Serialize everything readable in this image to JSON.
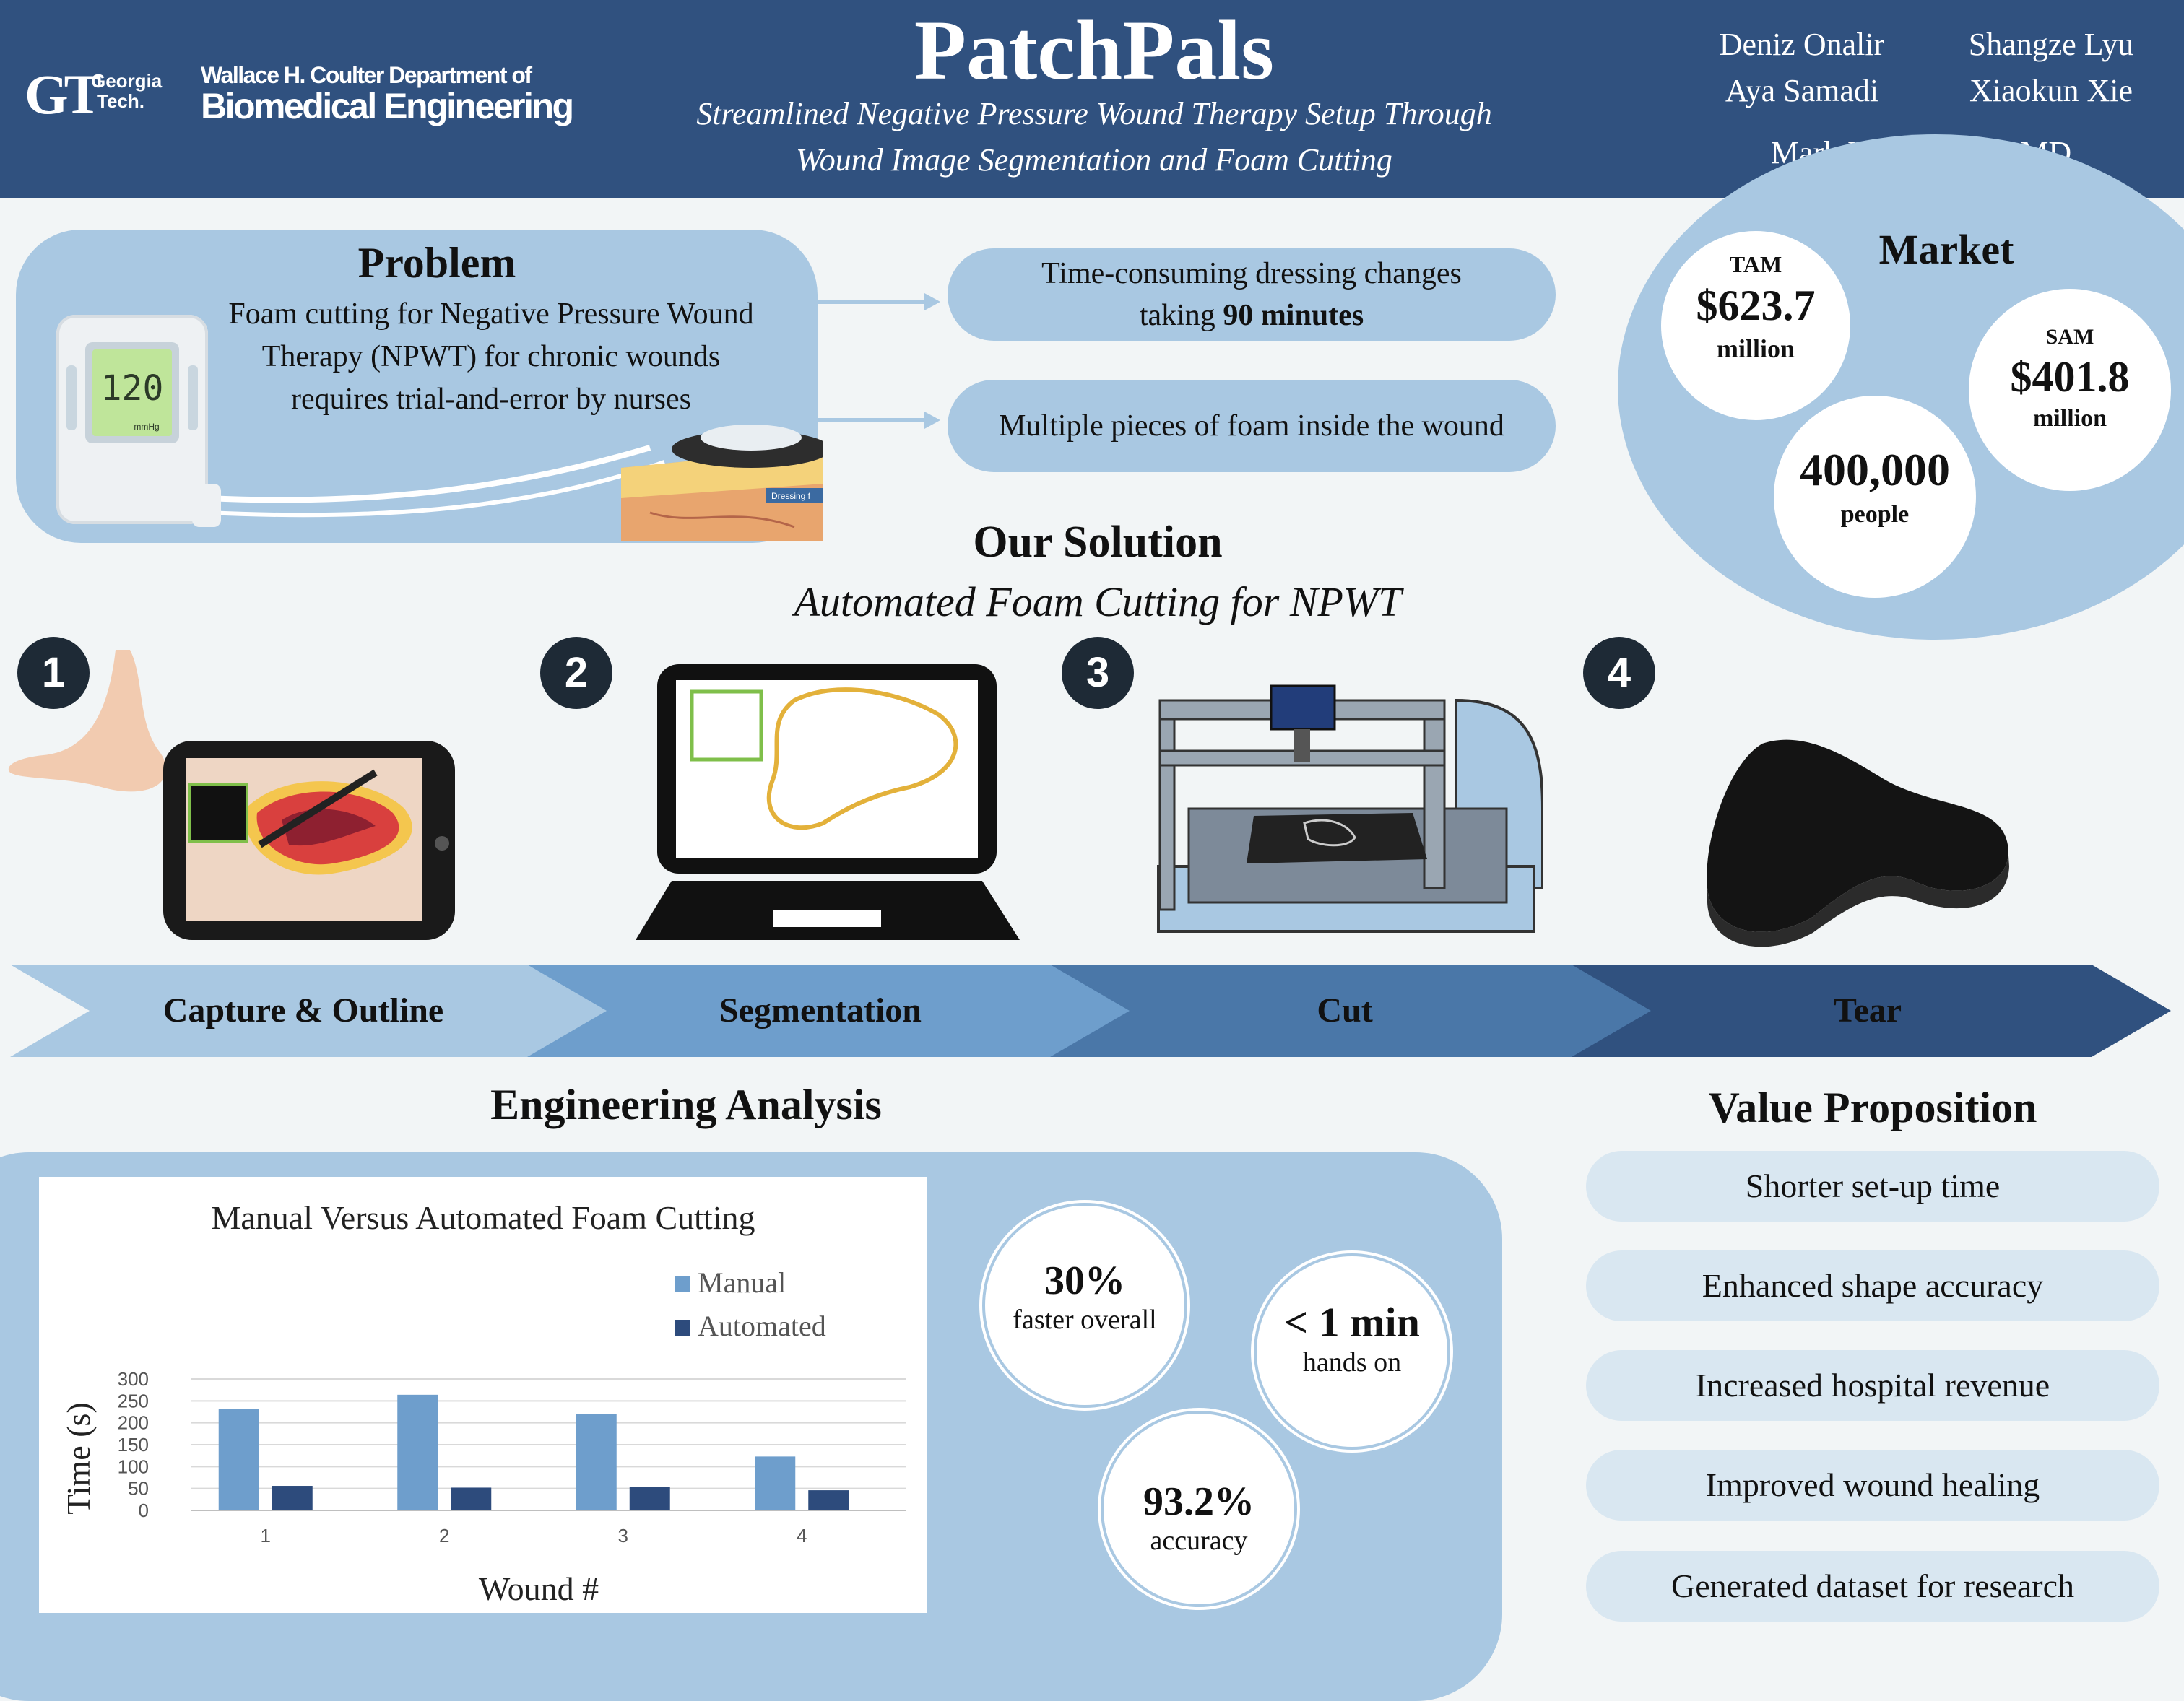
{
  "header": {
    "gt_logo": "GT",
    "gt_name_1": "Georgia",
    "gt_name_2": "Tech.",
    "dept_line1": "Wallace H. Coulter Department of",
    "dept_line2": "Biomedical Engineering",
    "title": "PatchPals",
    "subtitle_line1": "Streamlined Negative Pressure Wound Therapy Setup Through",
    "subtitle_line2": "Wound Image Segmentation and Foam Cutting",
    "authors": [
      "Deniz Onalir",
      "Shangze Lyu",
      "Aya Samadi",
      "Xiaokun Xie"
    ],
    "advisor": "Mark Molckovsky, MD"
  },
  "problem": {
    "heading": "Problem",
    "text_line1": "Foam cutting for Negative Pressure Wound",
    "text_line2": "Therapy (NPWT) for chronic wounds",
    "text_line3": "requires trial-and-error by nurses",
    "device_reading": "120",
    "device_unit": "mmHg",
    "dressing_label": "Dressing f",
    "point1_line1": "Time-consuming dressing changes",
    "point1_pre": "taking ",
    "point1_bold": "90 minutes",
    "point2": "Multiple pieces of foam inside the wound"
  },
  "market": {
    "heading": "Market",
    "tam_label": "TAM",
    "tam_value": "$623.7",
    "tam_unit": "million",
    "sam_label": "SAM",
    "sam_value": "$401.8",
    "sam_unit": "million",
    "people_value": "400,000",
    "people_unit": "people"
  },
  "solution": {
    "heading": "Our Solution",
    "subheading": "Automated Foam Cutting for NPWT",
    "steps": [
      {
        "num": "1",
        "label": "Capture & Outline"
      },
      {
        "num": "2",
        "label": "Segmentation"
      },
      {
        "num": "3",
        "label": "Cut"
      },
      {
        "num": "4",
        "label": "Tear"
      }
    ],
    "colors": [
      "#a9c8e2",
      "#6e9ecc",
      "#4a77a8",
      "#30517f"
    ]
  },
  "analysis": {
    "heading": "Engineering Analysis",
    "stats": [
      {
        "value": "30%",
        "label": "faster overall"
      },
      {
        "value": "< 1 min",
        "label": "hands on"
      },
      {
        "value": "93.2%",
        "label": "accuracy"
      }
    ]
  },
  "chart_data": {
    "type": "bar",
    "title": "Manual Versus Automated Foam Cutting",
    "xlabel": "Wound #",
    "ylabel": "Time (s)",
    "categories": [
      "1",
      "2",
      "3",
      "4"
    ],
    "ylim": [
      0,
      300
    ],
    "yticks": [
      "0",
      "50",
      "100",
      "150",
      "200",
      "250",
      "300"
    ],
    "series": [
      {
        "name": "Manual",
        "color": "#6e9ecc",
        "values": [
          232,
          264,
          220,
          123
        ]
      },
      {
        "name": "Automated",
        "color": "#2d4b7c",
        "values": [
          56,
          52,
          53,
          46
        ]
      }
    ],
    "legend": "top-right",
    "grid": true
  },
  "value_proposition": {
    "heading": "Value Proposition",
    "items": [
      "Shorter set-up time",
      "Enhanced shape accuracy",
      "Increased hospital revenue",
      "Improved wound healing",
      "Generated dataset for research"
    ]
  }
}
